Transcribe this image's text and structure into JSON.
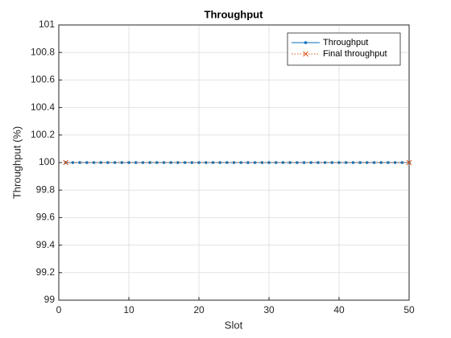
{
  "chart_data": {
    "type": "line",
    "title": "Throughput",
    "xlabel": "Slot",
    "ylabel": "Throughput (%)",
    "xlim": [
      0,
      50
    ],
    "xticks": [
      0,
      10,
      20,
      30,
      40,
      50
    ],
    "ylim": [
      99,
      101
    ],
    "yticks": [
      99,
      99.2,
      99.4,
      99.6,
      99.8,
      100,
      100.2,
      100.4,
      100.6,
      100.8,
      101
    ],
    "grid": true,
    "legend": "upper right",
    "series": [
      {
        "name": "Throughput",
        "color": "#0072BD",
        "line": "solid",
        "marker": "dot",
        "x": [
          1,
          2,
          3,
          4,
          5,
          6,
          7,
          8,
          9,
          10,
          11,
          12,
          13,
          14,
          15,
          16,
          17,
          18,
          19,
          20,
          21,
          22,
          23,
          24,
          25,
          26,
          27,
          28,
          29,
          30,
          31,
          32,
          33,
          34,
          35,
          36,
          37,
          38,
          39,
          40,
          41,
          42,
          43,
          44,
          45,
          46,
          47,
          48,
          49,
          50
        ],
        "values": [
          100,
          100,
          100,
          100,
          100,
          100,
          100,
          100,
          100,
          100,
          100,
          100,
          100,
          100,
          100,
          100,
          100,
          100,
          100,
          100,
          100,
          100,
          100,
          100,
          100,
          100,
          100,
          100,
          100,
          100,
          100,
          100,
          100,
          100,
          100,
          100,
          100,
          100,
          100,
          100,
          100,
          100,
          100,
          100,
          100,
          100,
          100,
          100,
          100,
          100
        ]
      },
      {
        "name": "Final throughput",
        "color": "#D95319",
        "line": "dotted",
        "marker": "x",
        "x": [
          1,
          50
        ],
        "values": [
          100,
          100
        ]
      }
    ]
  }
}
